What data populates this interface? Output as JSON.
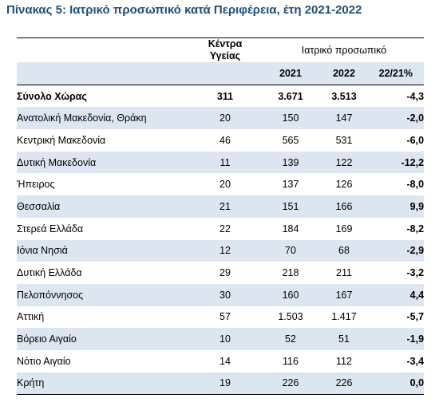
{
  "title": "Πίνακας 5: Ιατρικό προσωπικό κατά Περιφέρεια, έτη 2021-2022",
  "header": {
    "centers_line1": "Κέντρα",
    "centers_line2": "Υγείας",
    "staff_group": "Ιατρικό προσωπικό",
    "col_2021": "2021",
    "col_2022": "2022",
    "col_change": "22/21%"
  },
  "rows": [
    {
      "region": "Σύνολο Χώρας",
      "centers": "311",
      "y2021": "3.671",
      "y2022": "3.513",
      "change": "-4,3"
    },
    {
      "region": "Ανατολική Μακεδονία, Θράκη",
      "centers": "20",
      "y2021": "150",
      "y2022": "147",
      "change": "-2,0"
    },
    {
      "region": "Κεντρική Μακεδονία",
      "centers": "46",
      "y2021": "565",
      "y2022": "531",
      "change": "-6,0"
    },
    {
      "region": "Δυτική Μακεδονία",
      "centers": "11",
      "y2021": "139",
      "y2022": "122",
      "change": "-12,2"
    },
    {
      "region": "Ήπειρος",
      "centers": "20",
      "y2021": "137",
      "y2022": "126",
      "change": "-8,0"
    },
    {
      "region": "Θεσσαλία",
      "centers": "21",
      "y2021": "151",
      "y2022": "166",
      "change": "9,9"
    },
    {
      "region": "Στερεά Ελλάδα",
      "centers": "22",
      "y2021": "184",
      "y2022": "169",
      "change": "-8,2"
    },
    {
      "region": "Ιόνια Νησιά",
      "centers": "12",
      "y2021": "70",
      "y2022": "68",
      "change": "-2,9"
    },
    {
      "region": "Δυτική Ελλάδα",
      "centers": "29",
      "y2021": "218",
      "y2022": "211",
      "change": "-3,2"
    },
    {
      "region": "Πελοπόννησος",
      "centers": "30",
      "y2021": "160",
      "y2022": "167",
      "change": "4,4"
    },
    {
      "region": "Αττική",
      "centers": "57",
      "y2021": "1.503",
      "y2022": "1.417",
      "change": "-5,7"
    },
    {
      "region": "Βόρειο Αιγαίο",
      "centers": "10",
      "y2021": "52",
      "y2022": "51",
      "change": "-1,9"
    },
    {
      "region": "Νότιο Αιγαίο",
      "centers": "14",
      "y2021": "116",
      "y2022": "112",
      "change": "-3,4"
    },
    {
      "region": "Κρήτη",
      "centers": "19",
      "y2021": "226",
      "y2022": "226",
      "change": "0,0"
    }
  ],
  "colors": {
    "title": "#1f4e79",
    "row_shade": "#dce6f1"
  }
}
